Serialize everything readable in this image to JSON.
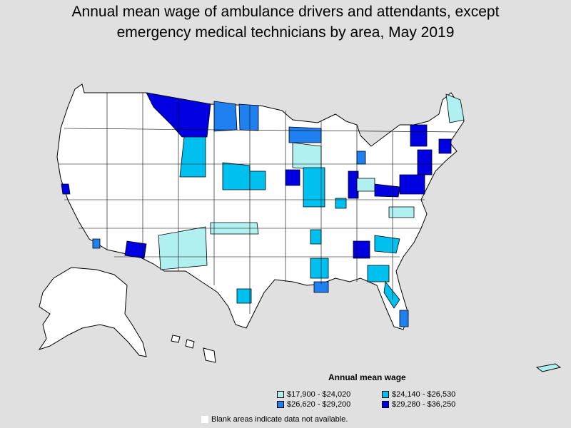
{
  "title_line1": "Annual mean wage of ambulance drivers and attendants, except",
  "title_line2": "emergency medical technicians by area, May 2019",
  "legend": {
    "title": "Annual mean wage",
    "items": [
      {
        "label": "$17,900 - $24,020",
        "color": "#b0f0f0"
      },
      {
        "label": "$24,140 - $26,530",
        "color": "#00c0f0"
      },
      {
        "label": "$26,620 - $29,200",
        "color": "#2080f0"
      },
      {
        "label": "$29,280 - $36,250",
        "color": "#0000e0"
      }
    ]
  },
  "note": "Blank areas indicate data not available.",
  "colors": {
    "background": "#e0e0e0",
    "land": "#ffffff",
    "border": "#000000"
  }
}
